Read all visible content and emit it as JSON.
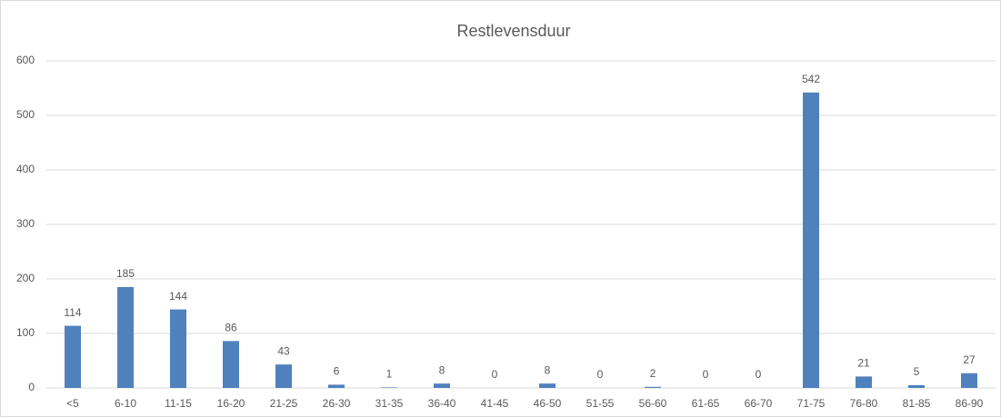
{
  "chart_data": {
    "type": "bar",
    "title": "Restlevensduur",
    "categories": [
      "<5",
      "6-10",
      "11-15",
      "16-20",
      "21-25",
      "26-30",
      "31-35",
      "36-40",
      "41-45",
      "46-50",
      "51-55",
      "56-60",
      "61-65",
      "66-70",
      "71-75",
      "76-80",
      "81-85",
      "86-90"
    ],
    "values": [
      114,
      185,
      144,
      86,
      43,
      6,
      1,
      8,
      0,
      8,
      0,
      2,
      0,
      0,
      542,
      21,
      5,
      27
    ],
    "color": "#4f81bd",
    "ylim": [
      0,
      600
    ],
    "yticks": [
      0,
      100,
      200,
      300,
      400,
      500,
      600
    ],
    "grid": true,
    "data_labels": true
  }
}
